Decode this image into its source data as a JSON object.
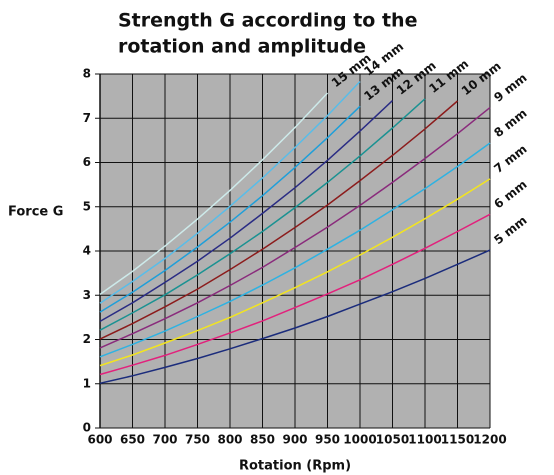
{
  "chart_data": {
    "type": "line",
    "title": [
      "Strength G according to the",
      "rotation and amplitude"
    ],
    "ylabel": "Force G",
    "xlabel": "Rotation (Rpm)",
    "x": [
      600,
      650,
      700,
      750,
      800,
      850,
      900,
      950,
      1000,
      1050,
      1100,
      1150,
      1200
    ],
    "xlim": [
      600,
      1200
    ],
    "xticks": [
      600,
      650,
      700,
      750,
      800,
      850,
      900,
      950,
      1000,
      1050,
      1100,
      1150,
      1200
    ],
    "ylim": [
      0,
      8
    ],
    "yticks": [
      0,
      1,
      2,
      3,
      4,
      5,
      6,
      7,
      8
    ],
    "grid": true,
    "series": [
      {
        "name": "5 mm",
        "color": "#1b2c7c",
        "values": [
          1.01,
          1.18,
          1.37,
          1.57,
          1.79,
          2.02,
          2.26,
          2.52,
          2.8,
          3.08,
          3.38,
          3.7,
          4.02
        ]
      },
      {
        "name": "6 mm",
        "color": "#e2217c",
        "values": [
          1.21,
          1.42,
          1.64,
          1.89,
          2.15,
          2.42,
          2.72,
          3.03,
          3.35,
          3.7,
          4.06,
          4.44,
          4.83
        ]
      },
      {
        "name": "7 mm",
        "color": "#f2e420",
        "values": [
          1.41,
          1.65,
          1.92,
          2.2,
          2.5,
          2.83,
          3.17,
          3.53,
          3.91,
          4.31,
          4.73,
          5.17,
          5.63
        ]
      },
      {
        "name": "8 mm",
        "color": "#2eb2e2",
        "values": [
          1.61,
          1.89,
          2.19,
          2.52,
          2.86,
          3.23,
          3.62,
          4.04,
          4.47,
          4.93,
          5.41,
          5.91,
          6.44
        ]
      },
      {
        "name": "9 mm",
        "color": "#8a2b7c",
        "values": [
          1.81,
          2.13,
          2.47,
          2.83,
          3.22,
          3.63,
          4.08,
          4.54,
          5.03,
          5.55,
          6.09,
          6.65,
          7.24
        ]
      },
      {
        "name": "10 mm",
        "color": "#8c1c1c",
        "values": [
          2.01,
          2.36,
          2.74,
          3.14,
          3.58,
          4.04,
          4.53,
          5.04,
          5.59,
          6.16,
          6.76,
          7.39,
          null
        ]
      },
      {
        "name": "11 mm",
        "color": "#1a9292",
        "values": [
          2.21,
          2.6,
          3.01,
          3.46,
          3.94,
          4.44,
          4.98,
          5.55,
          6.15,
          6.78,
          7.44,
          null,
          null
        ]
      },
      {
        "name": "12 mm",
        "color": "#2a2c84",
        "values": [
          2.41,
          2.83,
          3.29,
          3.77,
          4.29,
          4.85,
          5.43,
          6.05,
          6.71,
          7.4,
          null,
          null,
          null
        ]
      },
      {
        "name": "13 mm",
        "color": "#1f9fd9",
        "values": [
          2.62,
          3.07,
          3.56,
          4.09,
          4.65,
          5.25,
          5.89,
          6.56,
          7.27,
          null,
          null,
          null,
          null
        ]
      },
      {
        "name": "14 mm",
        "color": "#58bde9",
        "values": [
          2.82,
          3.31,
          3.83,
          4.4,
          5.01,
          5.65,
          6.34,
          7.06,
          7.83,
          null,
          null,
          null,
          null
        ]
      },
      {
        "name": "15 mm",
        "color": "#cdeaea",
        "values": [
          3.02,
          3.54,
          4.11,
          4.72,
          5.37,
          6.06,
          6.79,
          7.57,
          null,
          null,
          null,
          null,
          null
        ]
      }
    ]
  }
}
